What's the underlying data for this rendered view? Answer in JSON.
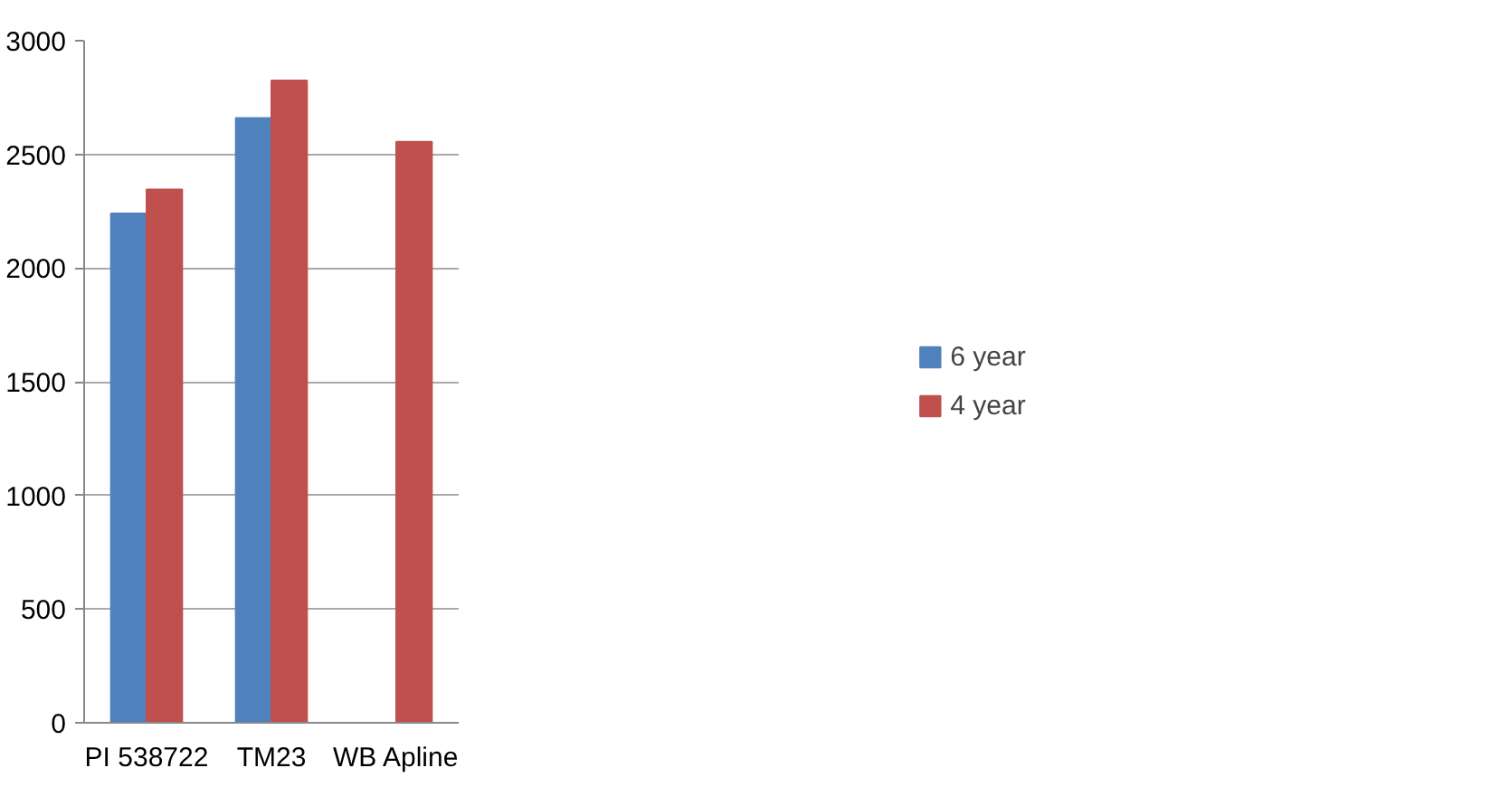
{
  "chart_data": {
    "type": "bar",
    "categories": [
      "PI 538722",
      "TM23",
      "WB Apline"
    ],
    "series": [
      {
        "name": "6 year",
        "color": "#4f81bd",
        "values": [
          2240,
          2660,
          null
        ]
      },
      {
        "name": "4 year",
        "color": "#c0504d",
        "values": [
          2345,
          2825,
          2555
        ]
      }
    ],
    "ylim": [
      0,
      3000
    ],
    "yticks": [
      0,
      500,
      1000,
      1500,
      2000,
      2500,
      3000
    ],
    "grid": "y",
    "legend": "right"
  }
}
